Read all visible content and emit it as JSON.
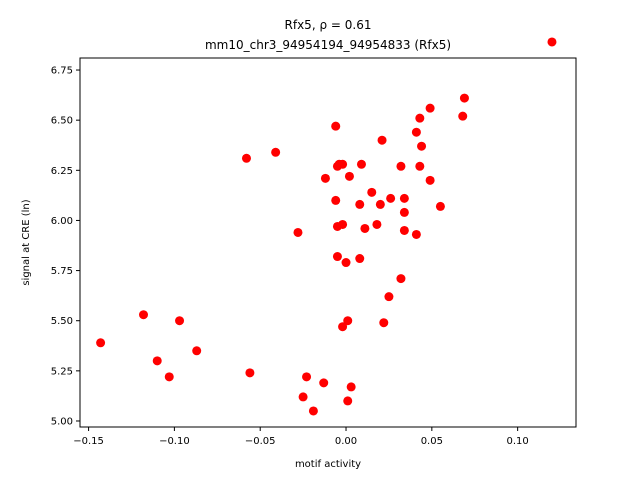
{
  "chart_data": {
    "type": "scatter",
    "title_line1": "Rfx5, ρ = 0.61",
    "title_line2": "mm10_chr3_94954194_94954833 (Rfx5)",
    "xlabel": "motif activity",
    "ylabel": "signal at CRE (ln)",
    "xlim": [
      -0.155,
      0.134
    ],
    "ylim": [
      4.97,
      6.81
    ],
    "xticks": [
      -0.15,
      -0.1,
      -0.05,
      0.0,
      0.05,
      0.1
    ],
    "xtick_labels": [
      "−0.15",
      "−0.10",
      "−0.05",
      "0.00",
      "0.05",
      "0.10"
    ],
    "yticks": [
      5.0,
      5.25,
      5.5,
      5.75,
      6.0,
      6.25,
      6.5,
      6.75
    ],
    "ytick_labels": [
      "5.00",
      "5.25",
      "5.50",
      "5.75",
      "6.00",
      "6.25",
      "6.50",
      "6.75"
    ],
    "marker_color": "#ff0000",
    "grid": false,
    "points": [
      [
        0.12,
        6.89
      ],
      [
        0.069,
        6.61
      ],
      [
        0.049,
        6.56
      ],
      [
        0.068,
        6.52
      ],
      [
        0.043,
        6.51
      ],
      [
        -0.006,
        6.47
      ],
      [
        0.041,
        6.44
      ],
      [
        0.021,
        6.4
      ],
      [
        0.044,
        6.37
      ],
      [
        -0.041,
        6.34
      ],
      [
        -0.058,
        6.31
      ],
      [
        -0.004,
        6.28
      ],
      [
        -0.005,
        6.27
      ],
      [
        -0.002,
        6.28
      ],
      [
        0.009,
        6.28
      ],
      [
        0.032,
        6.27
      ],
      [
        0.043,
        6.27
      ],
      [
        0.002,
        6.22
      ],
      [
        -0.012,
        6.21
      ],
      [
        0.049,
        6.2
      ],
      [
        0.015,
        6.14
      ],
      [
        -0.006,
        6.1
      ],
      [
        0.026,
        6.11
      ],
      [
        0.034,
        6.11
      ],
      [
        0.008,
        6.08
      ],
      [
        0.02,
        6.08
      ],
      [
        0.055,
        6.07
      ],
      [
        0.034,
        6.04
      ],
      [
        0.018,
        5.98
      ],
      [
        -0.002,
        5.98
      ],
      [
        -0.005,
        5.97
      ],
      [
        0.011,
        5.96
      ],
      [
        0.034,
        5.95
      ],
      [
        -0.028,
        5.94
      ],
      [
        0.041,
        5.93
      ],
      [
        -0.005,
        5.82
      ],
      [
        0.008,
        5.81
      ],
      [
        0.0,
        5.79
      ],
      [
        0.032,
        5.71
      ],
      [
        0.025,
        5.62
      ],
      [
        -0.118,
        5.53
      ],
      [
        -0.097,
        5.5
      ],
      [
        0.001,
        5.5
      ],
      [
        0.022,
        5.49
      ],
      [
        -0.002,
        5.47
      ],
      [
        -0.143,
        5.39
      ],
      [
        -0.087,
        5.35
      ],
      [
        -0.11,
        5.3
      ],
      [
        -0.056,
        5.24
      ],
      [
        -0.103,
        5.22
      ],
      [
        -0.023,
        5.22
      ],
      [
        -0.013,
        5.19
      ],
      [
        0.003,
        5.17
      ],
      [
        -0.025,
        5.12
      ],
      [
        0.001,
        5.1
      ],
      [
        -0.019,
        5.05
      ]
    ]
  }
}
